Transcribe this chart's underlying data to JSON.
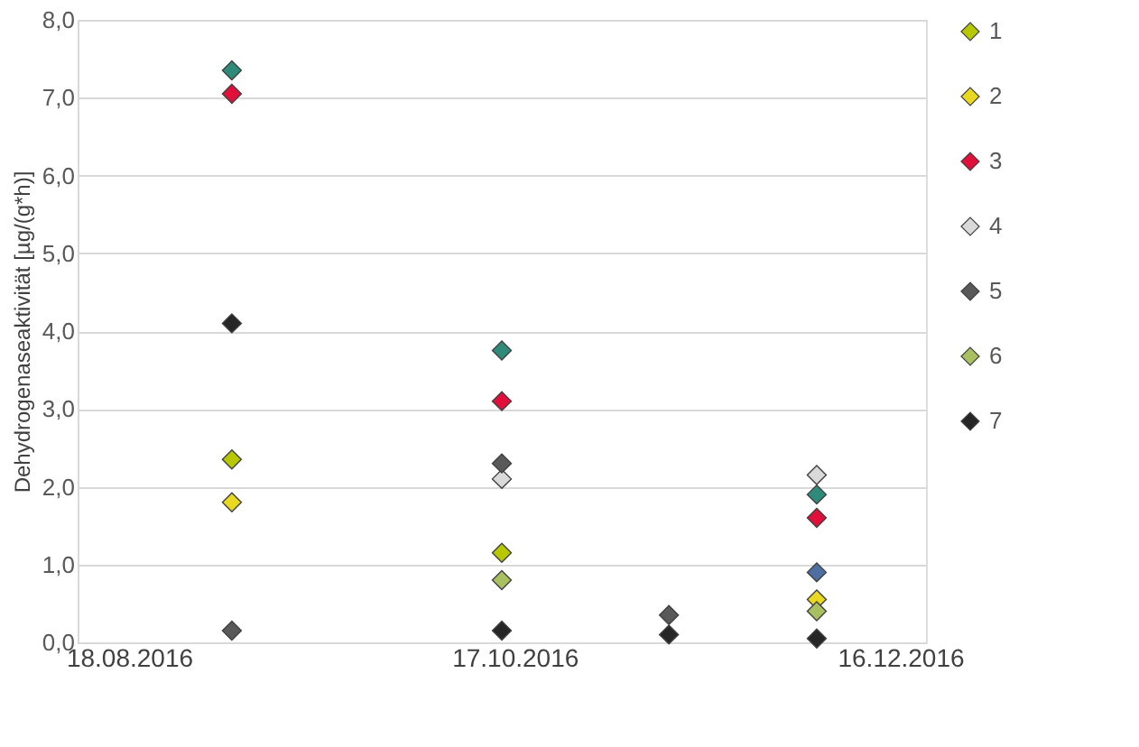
{
  "chart_data": {
    "type": "scatter",
    "ylabel": "Dehydrogenaseaktivität [µg/(g*h)]",
    "marker": "diamond",
    "grid": "y",
    "legend": "right",
    "xlim": [
      "2016-08-10",
      "2016-12-20"
    ],
    "xticks": [
      {
        "value": "2016-08-18",
        "label": "18.08.2016"
      },
      {
        "value": "2016-10-17",
        "label": "17.10.2016"
      },
      {
        "value": "2016-12-16",
        "label": "16.12.2016"
      }
    ],
    "ylim": [
      0,
      8
    ],
    "yticks": [
      {
        "value": 0,
        "label": "0,0"
      },
      {
        "value": 1,
        "label": "1,0"
      },
      {
        "value": 2,
        "label": "2,0"
      },
      {
        "value": 3,
        "label": "3,0"
      },
      {
        "value": 4,
        "label": "4,0"
      },
      {
        "value": 5,
        "label": "5,0"
      },
      {
        "value": 6,
        "label": "6,0"
      },
      {
        "value": 7,
        "label": "7,0"
      },
      {
        "value": 8,
        "label": "8,0"
      }
    ],
    "series": [
      {
        "name": "1",
        "color": "#b8c800",
        "x": [
          "2016-09-03",
          "2016-10-15"
        ],
        "values": [
          2.35,
          1.15
        ]
      },
      {
        "name": "2",
        "color": "#e8d820",
        "x": [
          "2016-09-03",
          "2016-12-03"
        ],
        "values": [
          1.8,
          0.55
        ]
      },
      {
        "name": "3",
        "color": "#e0103a",
        "x": [
          "2016-09-03",
          "2016-10-15",
          "2016-12-03"
        ],
        "values": [
          7.05,
          3.1,
          1.6
        ]
      },
      {
        "name": "4",
        "color": "#d9d9d9",
        "x": [
          "2016-10-15",
          "2016-12-03"
        ],
        "values": [
          2.1,
          2.15
        ]
      },
      {
        "name": "5",
        "color": "#595959",
        "x": [
          "2016-09-03",
          "2016-10-15",
          "2016-11-10"
        ],
        "values": [
          0.15,
          2.3,
          0.35
        ]
      },
      {
        "name": "6",
        "color": "#a8c060",
        "x": [
          "2016-10-15",
          "2016-12-03"
        ],
        "values": [
          0.8,
          0.4
        ]
      },
      {
        "name": "7",
        "color": "#262626",
        "x": [
          "2016-09-03",
          "2016-10-15",
          "2016-11-10",
          "2016-12-03"
        ],
        "values": [
          4.1,
          0.15,
          0.1,
          0.05
        ]
      },
      {
        "color": "#2e8b7a",
        "x": [
          "2016-09-03",
          "2016-10-15",
          "2016-12-03"
        ],
        "values": [
          7.35,
          3.75,
          1.9
        ]
      },
      {
        "color": "#4f6fa0",
        "x": [
          "2016-12-03"
        ],
        "values": [
          0.9
        ]
      }
    ]
  }
}
